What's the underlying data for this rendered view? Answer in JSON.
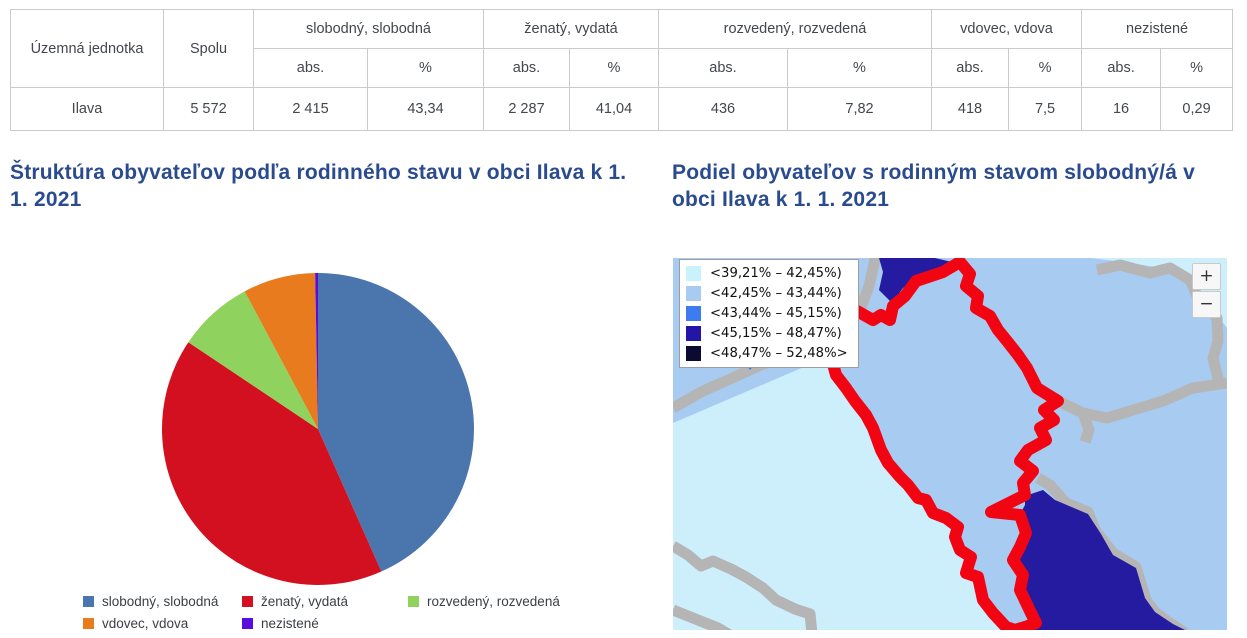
{
  "table": {
    "unit_header": "Územná jednotka",
    "total_header": "Spolu",
    "abs_label": "abs.",
    "pct_label": "%",
    "groups": [
      "slobodný, slobodná",
      "ženatý, vydatá",
      "rozvedený, rozvedená",
      "vdovec, vdova",
      "nezistené"
    ],
    "row": {
      "unit": "Ilava",
      "total": "5 572",
      "values": [
        "2 415",
        "43,34",
        "2 287",
        "41,04",
        "436",
        "7,82",
        "418",
        "7,5",
        "16",
        "0,29"
      ]
    }
  },
  "chart_data": [
    {
      "type": "pie",
      "title": "Štruktúra obyvateľov podľa rodinného stavu v obci Ilava k 1. 1. 2021",
      "labels": [
        "slobodný, slobodná",
        "ženatý, vydatá",
        "rozvedený, rozvedená",
        "vdovec, vdova",
        "nezistené"
      ],
      "values": [
        43.34,
        41.04,
        7.82,
        7.5,
        0.29
      ],
      "colors": [
        "#4b76ad",
        "#d2101f",
        "#8fd35e",
        "#e87b1d",
        "#5a0ce0"
      ],
      "start_angle": -90,
      "direction": "clockwise",
      "legend_position": "bottom"
    },
    {
      "type": "choropleth",
      "title": "Podiel obyvateľov s rodinným stavom slobodný/á v obci Ilava k 1. 1. 2021",
      "highlighted_region": "Ilava",
      "highlight_outline_color": "#f20513",
      "boundary_color": "#b5b5b5",
      "classes": [
        {
          "label": "<39,21% – 42,45%)",
          "color": "#c9f2fd"
        },
        {
          "label": "<42,45% – 43,44%)",
          "color": "#a8cbf2"
        },
        {
          "label": "<43,44% – 45,15%)",
          "color": "#3c7cee"
        },
        {
          "label": "<45,15% – 48,47%)",
          "color": "#2315a5"
        },
        {
          "label": "<48,47% – 52,48%>",
          "color": "#0a0a33"
        }
      ],
      "controls": {
        "zoom_in": "+",
        "zoom_out": "−"
      }
    }
  ]
}
